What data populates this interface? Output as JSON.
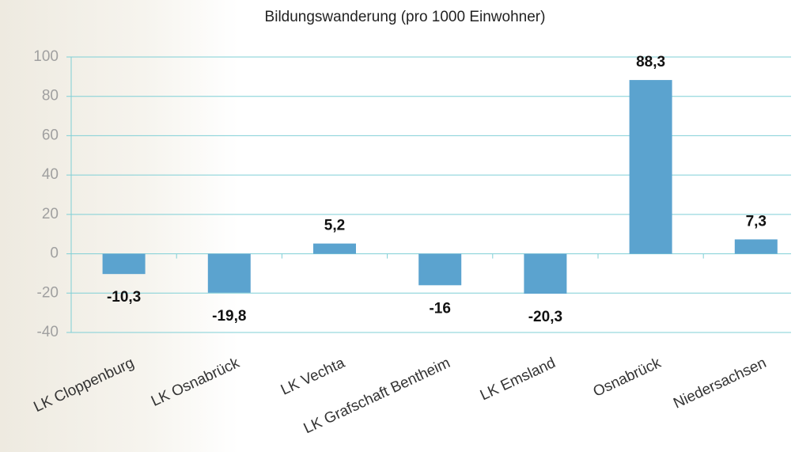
{
  "chart_data": {
    "type": "bar",
    "title": "Bildungswanderung (pro 1000 Einwohner)",
    "categories": [
      "LK Cloppenburg",
      "LK Osnabrück",
      "LK Vechta",
      "LK Grafschaft Bentheim",
      "LK Emsland",
      "Osnabrück",
      "Niedersachsen"
    ],
    "values": [
      -10.3,
      -19.8,
      5.2,
      -16,
      -20.3,
      88.3,
      7.3
    ],
    "value_labels": [
      "-10,3",
      "-19,8",
      "5,2",
      "-16",
      "-20,3",
      "88,3",
      "7,3"
    ],
    "color": "#5ba3cf",
    "ylim": [
      -40,
      100
    ],
    "yticks": [
      -40,
      -20,
      0,
      20,
      40,
      60,
      80,
      100
    ],
    "grid": true
  }
}
